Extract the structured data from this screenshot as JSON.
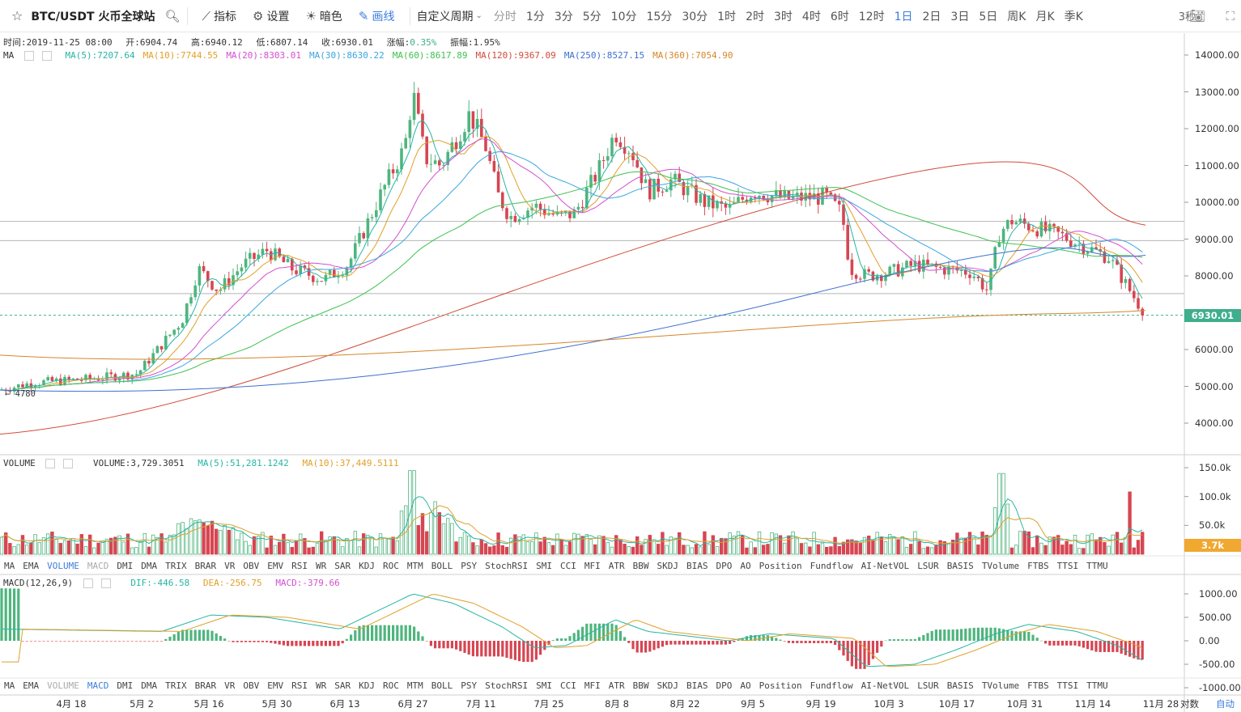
{
  "toolbar": {
    "symbol": "BTC/USDT 火币全球站",
    "tools": [
      {
        "label": "指标",
        "icon": "indicator-icon"
      },
      {
        "label": "设置",
        "icon": "gear-icon"
      },
      {
        "label": "暗色",
        "icon": "sun-icon"
      },
      {
        "label": "画线",
        "icon": "pencil-icon"
      }
    ],
    "custom_period": "自定义周期",
    "periods": [
      "分时",
      "1分",
      "3分",
      "5分",
      "10分",
      "15分",
      "30分",
      "1时",
      "2时",
      "3时",
      "4时",
      "6时",
      "12时",
      "1日",
      "2日",
      "3日",
      "5日",
      "周K",
      "月K",
      "季K"
    ],
    "active_period": "1日",
    "refresh": "3秒"
  },
  "info_line": {
    "time": "时间:2019-11-25 08:00",
    "open": "开:6904.74",
    "high": "高:6940.12",
    "low": "低:6807.14",
    "close": "收:6930.01",
    "change_label": "涨幅:",
    "change_value": "0.35%",
    "amplitude": "振幅:1.95%"
  },
  "ma_legend": {
    "label": "MA",
    "items": [
      {
        "text": "MA(5):7207.64",
        "color": "#26b5a3"
      },
      {
        "text": "MA(10):7744.55",
        "color": "#e0a02a"
      },
      {
        "text": "MA(20):8303.01",
        "color": "#d24fd0"
      },
      {
        "text": "MA(30):8630.22",
        "color": "#3aa6e0"
      },
      {
        "text": "MA(60):8617.89",
        "color": "#3fc24f"
      },
      {
        "text": "MA(120):9367.09",
        "color": "#d14a3a"
      },
      {
        "text": "MA(250):8527.15",
        "color": "#3f6fd1"
      },
      {
        "text": "MA(360):7054.90",
        "color": "#d4862a"
      }
    ]
  },
  "price_axis": [
    "14000.00",
    "13000.00",
    "12000.00",
    "11000.00",
    "10000.00",
    "9000.00",
    "8000.00",
    "7000.00",
    "6000.00",
    "5000.00",
    "4000.00"
  ],
  "current_price": "6930.01",
  "low_marker": "← 4780",
  "volume_legend": {
    "label": "VOLUME",
    "volume": "VOLUME:3,729.3051",
    "ma5": "MA(5):51,281.1242",
    "ma10": "MA(10):37,449.5111"
  },
  "volume_axis": [
    "150.0k",
    "100.0k",
    "50.0k"
  ],
  "current_volume": "3.7k",
  "indicator_tabs": [
    "MA",
    "EMA",
    "VOLUME",
    "MACD",
    "DMI",
    "DMA",
    "TRIX",
    "BRAR",
    "VR",
    "OBV",
    "EMV",
    "RSI",
    "WR",
    "SAR",
    "KDJ",
    "ROC",
    "MTM",
    "BOLL",
    "PSY",
    "StochRSI",
    "SMI",
    "CCI",
    "MFI",
    "ATR",
    "BBW",
    "SKDJ",
    "BIAS",
    "DPO",
    "AO",
    "Position",
    "Fundflow",
    "AI-NetVOL",
    "LSUR",
    "BASIS",
    "TVolume",
    "FTBS",
    "TTSI",
    "TTMU"
  ],
  "macd_legend": {
    "label": "MACD(12,26,9)",
    "dif": "DIF:-446.58",
    "dea": "DEA:-256.75",
    "macd": "MACD:-379.66"
  },
  "macd_axis": [
    "1000.00",
    "500.00",
    "0.00",
    "-500.00",
    "-1000.00"
  ],
  "x_axis": [
    "4月 18",
    "5月 2",
    "5月 16",
    "5月 30",
    "6月 13",
    "6月 27",
    "7月 11",
    "7月 25",
    "8月 8",
    "8月 22",
    "9月 5",
    "9月 19",
    "10月 3",
    "10月 17",
    "10月 31",
    "11月 14",
    "11月 28"
  ],
  "bottom_right": {
    "log": "对数",
    "auto": "自动"
  },
  "colors": {
    "up": "#4fb57e",
    "down": "#d64652",
    "accent": "#3b7ddd",
    "price_tag": "#3eae8c",
    "vol_tag": "#f0a830"
  }
}
